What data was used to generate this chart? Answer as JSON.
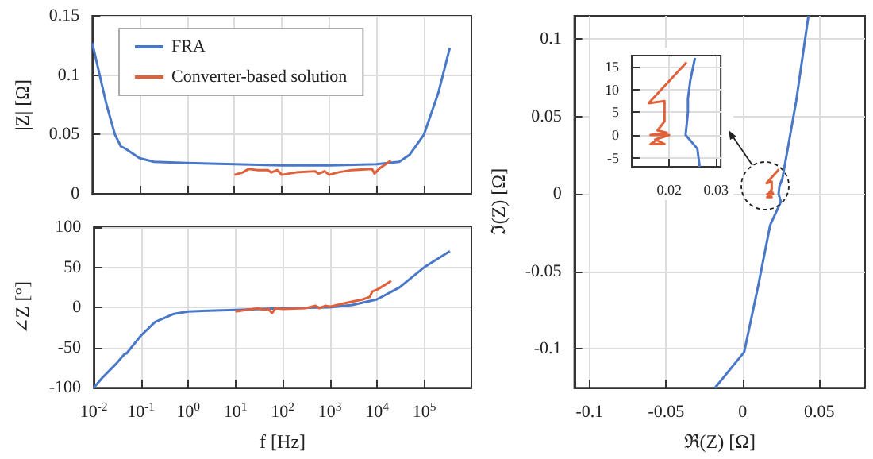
{
  "chart_data": [
    {
      "type": "line",
      "ylabel": "|Z| [Ω]",
      "log": "x",
      "xlim": [
        0.01,
        1000000
      ],
      "xticks": [
        {
          "value": 0.01,
          "label": null
        },
        {
          "value": 0.1,
          "label": null
        },
        {
          "value": 1,
          "label": null
        },
        {
          "value": 10,
          "label": null
        },
        {
          "value": 100,
          "label": null
        },
        {
          "value": 1000,
          "label": null
        },
        {
          "value": 10000,
          "label": null
        },
        {
          "value": 100000,
          "label": null
        }
      ],
      "ylim": [
        0,
        0.15
      ],
      "yticks": [
        0,
        0.05,
        0.1,
        0.15
      ],
      "grid": true,
      "legend": "top left",
      "tick_labels": "y",
      "series": [
        {
          "name": "FRA",
          "color": "#4a78c8",
          "x": [
            0.01,
            0.02,
            0.03,
            0.04,
            0.05,
            0.1,
            0.2,
            1,
            10,
            100,
            1000,
            10000,
            30000,
            50000,
            100000,
            200000,
            350000
          ],
          "values": [
            0.127,
            0.075,
            0.05,
            0.04,
            0.038,
            0.03,
            0.027,
            0.026,
            0.025,
            0.024,
            0.024,
            0.025,
            0.027,
            0.033,
            0.05,
            0.085,
            0.123
          ]
        },
        {
          "name": "Converter-based solution",
          "color": "#e0603a",
          "x": [
            10,
            15,
            20,
            30,
            50,
            60,
            80,
            100,
            200,
            500,
            600,
            800,
            1000,
            1500,
            3000,
            8000,
            9000,
            12000,
            20000
          ],
          "values": [
            0.016,
            0.018,
            0.021,
            0.02,
            0.02,
            0.018,
            0.02,
            0.016,
            0.018,
            0.019,
            0.017,
            0.019,
            0.016,
            0.018,
            0.02,
            0.021,
            0.017,
            0.022,
            0.028
          ]
        }
      ]
    },
    {
      "type": "line",
      "xlabel": "f [Hz]",
      "ylabel": "∠Z [°]",
      "log": "x",
      "xlim": [
        0.01,
        1000000
      ],
      "xticks": [
        {
          "value": 0.01,
          "label": "10$^{-2}$"
        },
        {
          "value": 0.1,
          "label": "10$^{-1}$"
        },
        {
          "value": 1,
          "label": "10$^{0}$"
        },
        {
          "value": 10,
          "label": "10$^{1}$"
        },
        {
          "value": 100,
          "label": "10$^{2}$"
        },
        {
          "value": 1000,
          "label": "10$^{3}$"
        },
        {
          "value": 10000,
          "label": "10$^{4}$"
        },
        {
          "value": 100000,
          "label": "10$^{5}$"
        }
      ],
      "ylim": [
        -100,
        100
      ],
      "yticks": [
        -100,
        -50,
        0,
        50,
        100
      ],
      "grid": true,
      "series": [
        {
          "color": "#4a78c8",
          "x": [
            0.01,
            0.015,
            0.03,
            0.045,
            0.05,
            0.1,
            0.2,
            0.5,
            1,
            10,
            100,
            1000,
            3000,
            10000,
            30000,
            100000,
            350000
          ],
          "values": [
            -100,
            -88,
            -70,
            -58,
            -57,
            -35,
            -18,
            -8,
            -5,
            -3,
            -1,
            0,
            3,
            10,
            25,
            50,
            70
          ]
        },
        {
          "color": "#e0603a",
          "x": [
            10,
            30,
            40,
            50,
            60,
            70,
            100,
            300,
            500,
            600,
            800,
            1000,
            2000,
            5000,
            7000,
            8000,
            10000,
            20000
          ],
          "values": [
            -5,
            -1,
            -3,
            -2,
            -7,
            -1,
            -2,
            -1,
            2,
            -1,
            2,
            1,
            5,
            10,
            13,
            20,
            22,
            33
          ]
        }
      ]
    },
    {
      "type": "line",
      "xlabel": "ℜ(Z) [Ω]",
      "ylabel": "ℑ(Z) [Ω]",
      "xlim": [
        -0.11,
        0.08
      ],
      "xticks": [
        -0.1,
        -0.05,
        0,
        0.05
      ],
      "ylim": [
        -0.125,
        0.115
      ],
      "yticks": [
        -0.1,
        -0.05,
        0,
        0.05,
        0.1
      ],
      "grid": true,
      "series": [
        {
          "color": "#4a78c8",
          "x": [
            -0.018,
            0.001,
            0.01,
            0.018,
            0.025,
            0.0235,
            0.024,
            0.026,
            0.035,
            0.043
          ],
          "values": [
            -0.125,
            -0.102,
            -0.06,
            -0.02,
            -0.005,
            0,
            0.005,
            0.01,
            0.06,
            0.115
          ]
        },
        {
          "color": "#e0603a",
          "x": [
            0.0237,
            0.0156,
            0.019,
            0.019,
            0.0175,
            0.0195,
            0.016,
            0.02,
            0.017,
            0.019,
            0.016,
            0.0175
          ],
          "values": [
            0.016,
            0.007,
            0.008,
            0.003,
            0.001,
            0.001,
            0,
            0,
            -0.001,
            -0.002,
            -0.002,
            -0.001
          ]
        }
      ]
    },
    {
      "type": "line",
      "xlim": [
        0.012,
        0.031
      ],
      "xticks": [
        0.02,
        0.03
      ],
      "ylim": [
        -7,
        17.5
      ],
      "yticks": [
        -5,
        0,
        5,
        10,
        15
      ],
      "grid": true,
      "series": [
        {
          "color": "#4a78c8",
          "x": [
            0.0255,
            0.0245,
            0.024,
            0.024,
            0.0235,
            0.026,
            0.0265
          ],
          "values": [
            17,
            12,
            8,
            5,
            0,
            -3,
            -7
          ]
        },
        {
          "color": "#e0603a",
          "x": [
            0.0237,
            0.0156,
            0.019,
            0.019,
            0.0175,
            0.0195,
            0.016,
            0.02,
            0.017,
            0.019,
            0.016,
            0.0175
          ],
          "values": [
            16,
            7,
            7.5,
            3,
            1,
            0.5,
            0,
            0,
            -1,
            -2,
            -2,
            -1
          ]
        }
      ]
    }
  ]
}
